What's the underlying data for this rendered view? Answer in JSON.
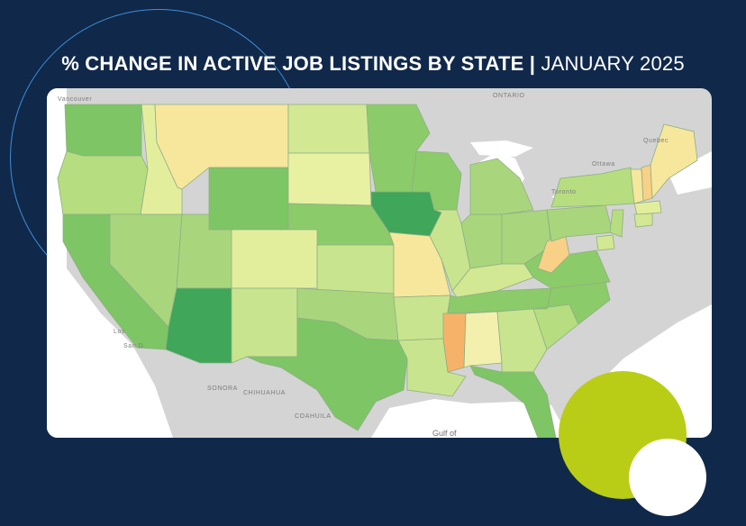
{
  "title": {
    "bold": "% CHANGE IN ACTIVE JOB LISTINGS BY STATE |",
    "light": "JANUARY 2025"
  },
  "colors": {
    "background": "#10284a",
    "ring": "#3f8fd6",
    "lime_circle": "#b9cd17",
    "white_circle": "#ffffff",
    "water": "#ffffff",
    "land": "#d4d4d4",
    "scale": {
      "strong_increase": "#3fa65a",
      "increase": "#7ec565",
      "moderate_increase": "#a9d67c",
      "slight_increase": "#c8e48e",
      "near_zero": "#e6efa0",
      "slight_decrease": "#f5e79c",
      "decrease": "#f9d087",
      "strong_decrease": "#f7b26a"
    }
  },
  "map_labels": {
    "vancouver": "Vancouver",
    "ontario": "ONTARIO",
    "quebec": "Quebec",
    "ottawa": "Ottawa",
    "toronto": "Toronto",
    "los_angeles": "Los",
    "san_diego": "San D",
    "sonora": "SONORA",
    "chihuahua": "CHIHUAHUA",
    "coahuila": "COAHUILA",
    "gulf": "Gulf of"
  }
}
